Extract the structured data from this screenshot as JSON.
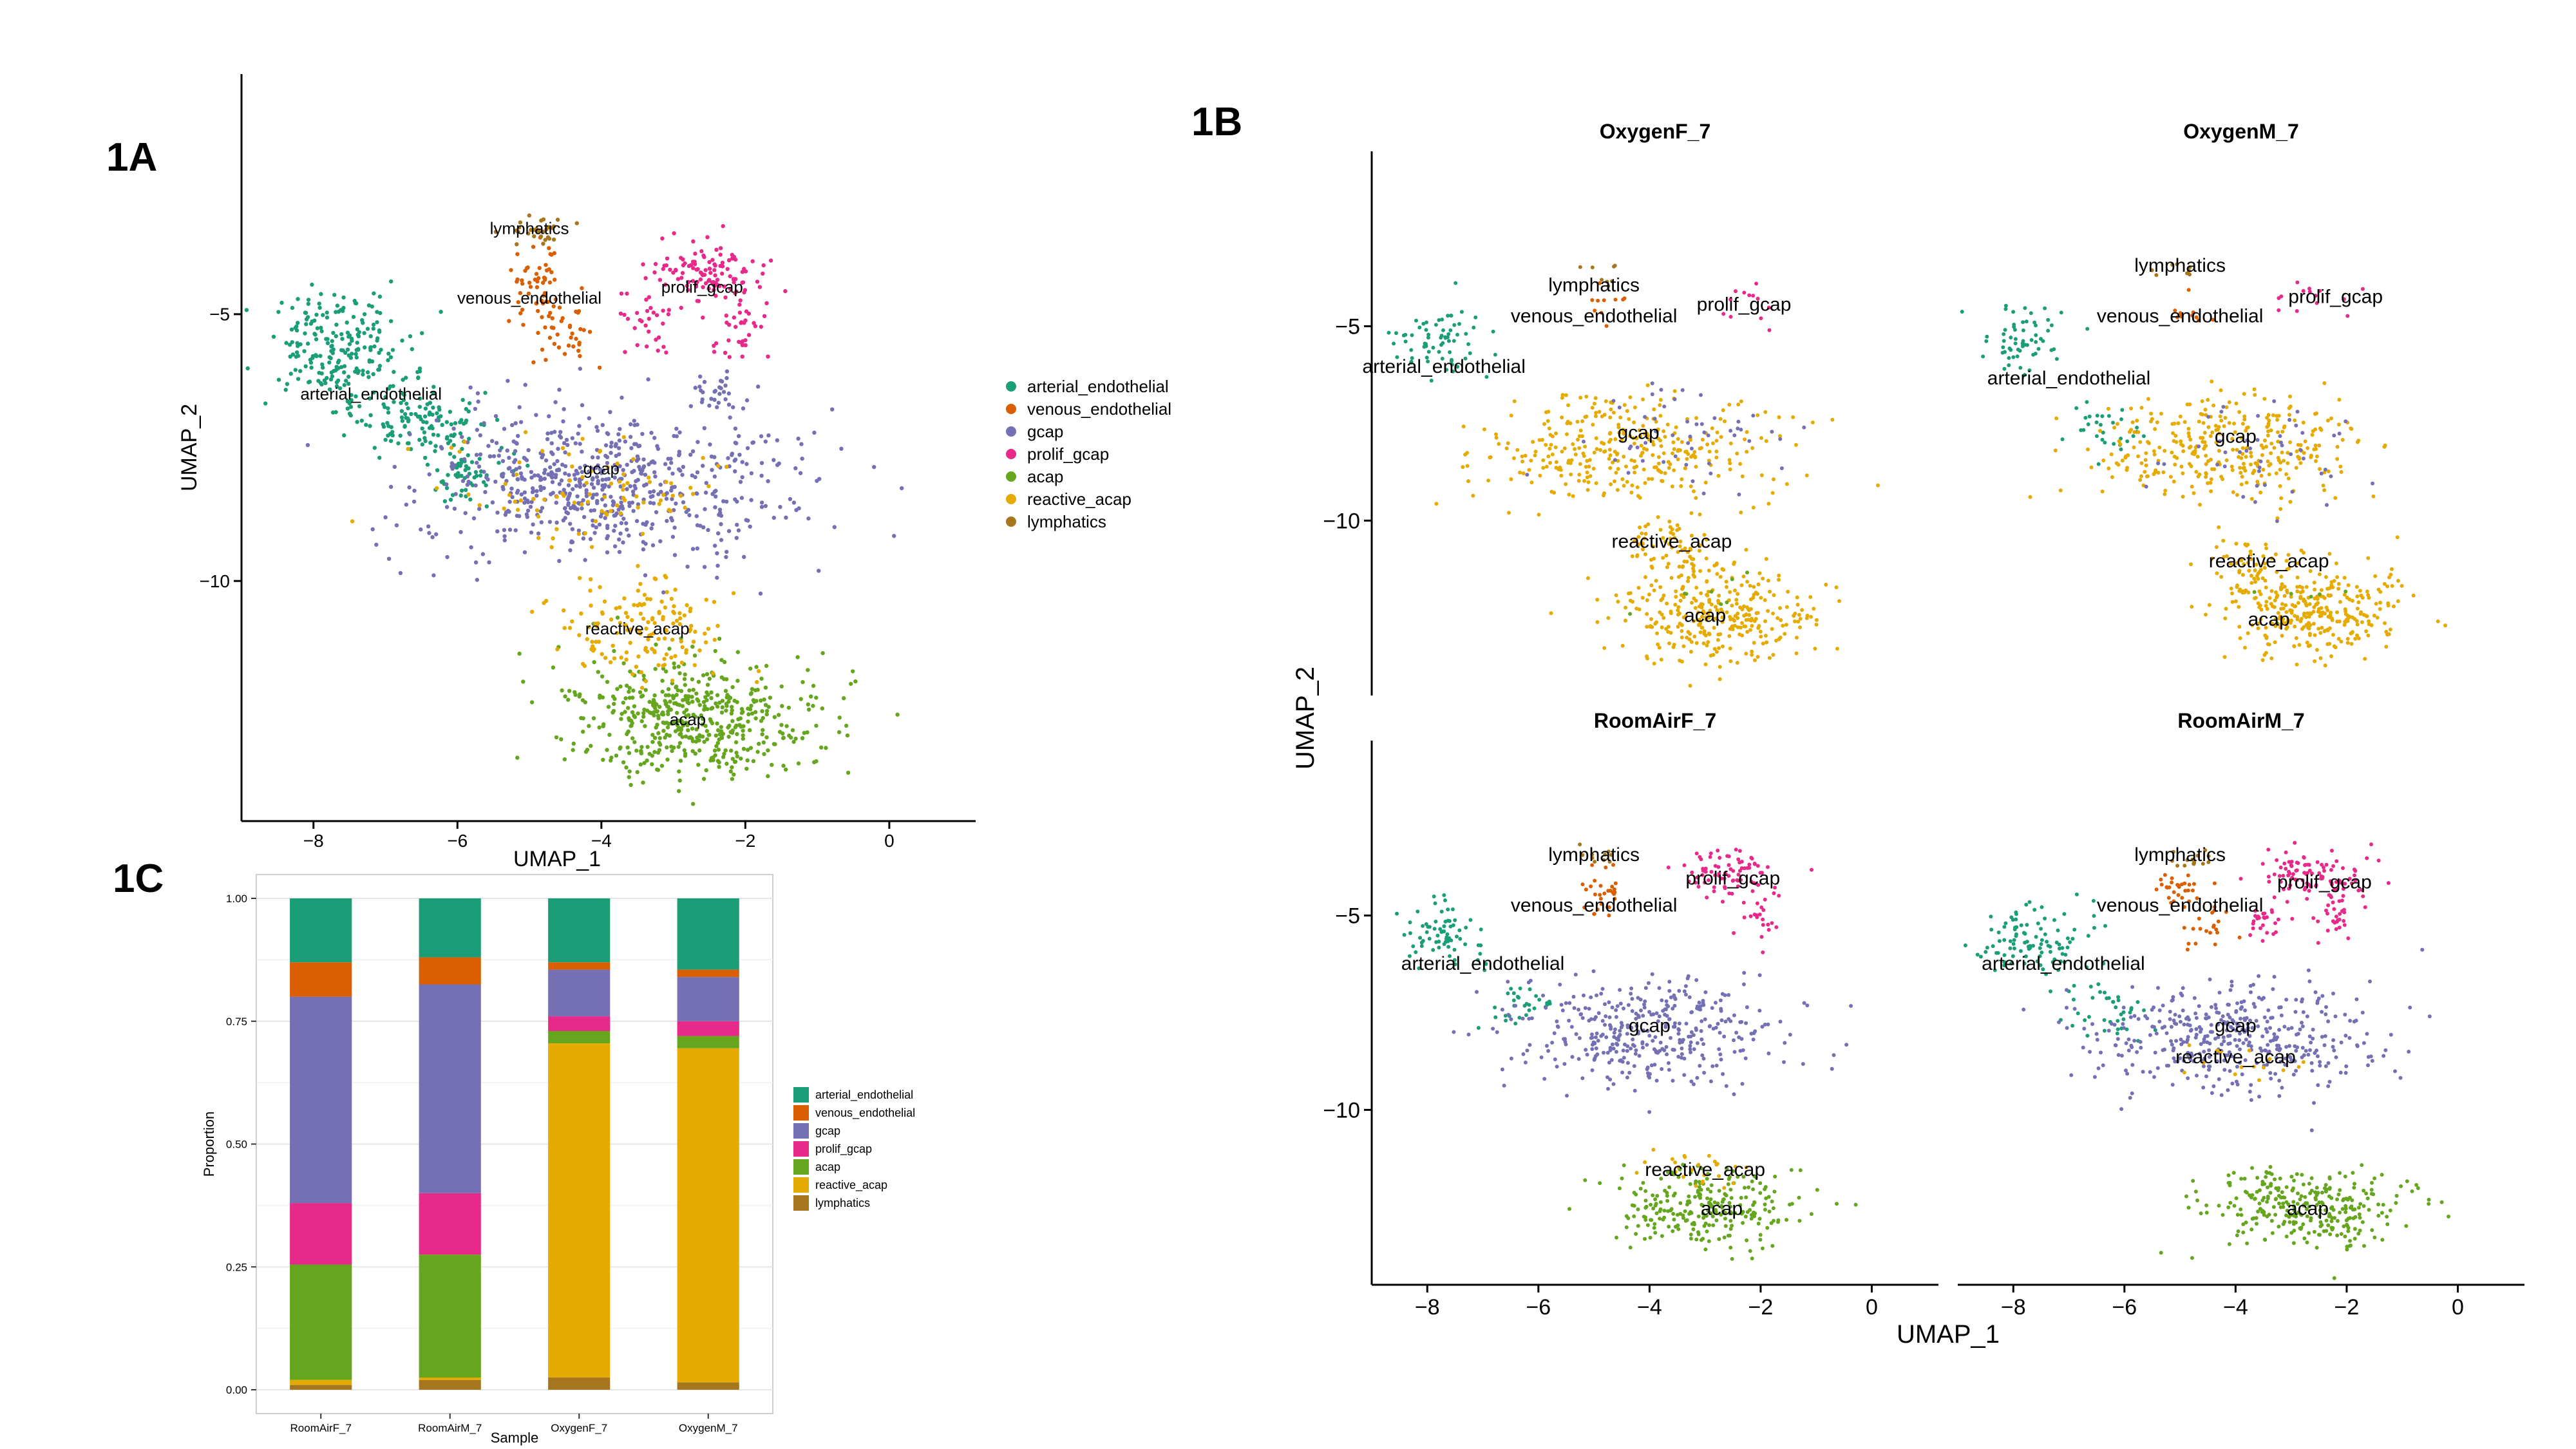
{
  "figure": {
    "panel_labels": [
      "1A",
      "1B",
      "1C"
    ]
  },
  "colors": {
    "arterial_endothelial": "#1b9e77",
    "venous_endothelial": "#d95f02",
    "gcap": "#7570b3",
    "prolif_gcap": "#e7298a",
    "acap": "#66a61e",
    "reactive_acap": "#e6ab02",
    "lymphatics": "#a6761d"
  },
  "chart_data": [
    {
      "id": "1A",
      "type": "scatter",
      "xlabel": "UMAP_1",
      "ylabel": "UMAP_2",
      "xlim": [
        -9.0,
        1.2
      ],
      "ylim": [
        -14.5,
        -0.5
      ],
      "x_ticks": [
        -8,
        -6,
        -4,
        -2,
        0
      ],
      "y_ticks": [
        -5,
        -10
      ],
      "grid": false,
      "legend_position": "right",
      "legend": [
        "arterial_endothelial",
        "venous_endothelial",
        "gcap",
        "prolif_gcap",
        "acap",
        "reactive_acap",
        "lymphatics"
      ],
      "clusters": [
        {
          "name": "arterial_endothelial",
          "label": "arterial_endothelial",
          "label_x": -7.2,
          "label_y": -6.6,
          "regions": [
            {
              "x": -7.7,
              "y": -5.6,
              "sx": 0.5,
              "sy": 0.5,
              "n": 220
            },
            {
              "x": -6.6,
              "y": -7.0,
              "sx": 0.45,
              "sy": 0.35,
              "n": 130
            },
            {
              "x": -5.9,
              "y": -8.0,
              "sx": 0.3,
              "sy": 0.3,
              "n": 60
            }
          ]
        },
        {
          "name": "venous_endothelial",
          "label": "venous_endothelial",
          "label_x": -5.0,
          "label_y": -4.8,
          "regions": [
            {
              "x": -4.9,
              "y": -4.4,
              "sx": 0.18,
              "sy": 0.35,
              "n": 50
            },
            {
              "x": -4.5,
              "y": -5.3,
              "sx": 0.2,
              "sy": 0.35,
              "n": 40
            }
          ]
        },
        {
          "name": "gcap",
          "label": "gcap",
          "label_x": -4.0,
          "label_y": -8.0,
          "regions": [
            {
              "x": -4.0,
              "y": -8.2,
              "sx": 1.3,
              "sy": 0.7,
              "n": 650
            },
            {
              "x": -2.4,
              "y": -6.5,
              "sx": 0.15,
              "sy": 0.3,
              "n": 30
            }
          ]
        },
        {
          "name": "prolif_gcap",
          "label": "prolif_gcap",
          "label_x": -2.6,
          "label_y": -4.6,
          "regions": [
            {
              "x": -2.5,
              "y": -4.2,
              "sx": 0.4,
              "sy": 0.3,
              "n": 110
            },
            {
              "x": -2.1,
              "y": -5.2,
              "sx": 0.2,
              "sy": 0.4,
              "n": 40
            },
            {
              "x": -3.4,
              "y": -5.2,
              "sx": 0.2,
              "sy": 0.35,
              "n": 30
            }
          ]
        },
        {
          "name": "acap",
          "label": "acap",
          "label_x": -2.8,
          "label_y": -12.7,
          "regions": [
            {
              "x": -2.7,
              "y": -12.6,
              "sx": 0.9,
              "sy": 0.55,
              "n": 520
            }
          ]
        },
        {
          "name": "reactive_acap",
          "label": "reactive_acap",
          "label_x": -3.5,
          "label_y": -11.0,
          "regions": [
            {
              "x": -3.4,
              "y": -10.9,
              "sx": 0.6,
              "sy": 0.5,
              "n": 150
            },
            {
              "x": -4.0,
              "y": -8.4,
              "sx": 1.0,
              "sy": 0.5,
              "n": 90
            }
          ]
        },
        {
          "name": "lymphatics",
          "label": "lymphatics",
          "label_x": -5.0,
          "label_y": -3.5,
          "regions": [
            {
              "x": -4.8,
              "y": -3.5,
              "sx": 0.22,
              "sy": 0.14,
              "n": 30
            }
          ]
        }
      ]
    },
    {
      "id": "1B",
      "type": "scatter",
      "xlabel": "UMAP_1",
      "ylabel": "UMAP_2",
      "xlim": [
        -9.0,
        1.2
      ],
      "ylim": [
        -14.5,
        -0.5
      ],
      "x_ticks": [
        -8,
        -6,
        -4,
        -2,
        0
      ],
      "y_ticks": [
        -5,
        -10
      ],
      "grid": false,
      "facets": [
        {
          "title": "OxygenF_7",
          "clusters": [
            {
              "name": "arterial_endothelial",
              "label": "arterial_endothelial",
              "label_x": -7.7,
              "label_y": -6.2,
              "regions": [
                {
                  "x": -7.8,
                  "y": -5.4,
                  "sx": 0.45,
                  "sy": 0.45,
                  "n": 70
                }
              ]
            },
            {
              "name": "venous_endothelial",
              "label": "venous_endothelial",
              "label_x": -5.0,
              "label_y": -4.9,
              "regions": [
                {
                  "x": -4.8,
                  "y": -4.6,
                  "sx": 0.2,
                  "sy": 0.3,
                  "n": 10
                }
              ]
            },
            {
              "name": "reactive_acap",
              "label": "gcap",
              "label_x": -4.2,
              "label_y": -7.9,
              "regions": [
                {
                  "x": -4.3,
                  "y": -8.2,
                  "sx": 1.3,
                  "sy": 0.7,
                  "n": 340
                },
                {
                  "x": -2.7,
                  "y": -12.4,
                  "sx": 0.9,
                  "sy": 0.6,
                  "n": 310
                },
                {
                  "x": -3.6,
                  "y": -10.8,
                  "sx": 0.5,
                  "sy": 0.35,
                  "n": 70
                }
              ]
            },
            {
              "name": "acap",
              "label": "reactive_acap",
              "label_x": -3.6,
              "label_y": -10.7,
              "regions": [
                {
                  "x": -3.0,
                  "y": -12.0,
                  "sx": 0.8,
                  "sy": 0.5,
                  "n": 8
                }
              ]
            },
            {
              "name": "prolif_gcap",
              "label": "prolif_gcap",
              "label_x": -2.3,
              "label_y": -4.6,
              "regions": [
                {
                  "x": -2.4,
                  "y": -4.5,
                  "sx": 0.35,
                  "sy": 0.3,
                  "n": 12
                }
              ]
            },
            {
              "name": "gcap",
              "label": "acap",
              "label_x": -3.0,
              "label_y": -12.6,
              "regions": [
                {
                  "x": -3.5,
                  "y": -8.0,
                  "sx": 1.0,
                  "sy": 0.6,
                  "n": 50
                }
              ]
            },
            {
              "name": "lymphatics",
              "label": "lymphatics",
              "label_x": -5.0,
              "label_y": -4.1,
              "regions": [
                {
                  "x": -4.7,
                  "y": -3.8,
                  "sx": 0.2,
                  "sy": 0.2,
                  "n": 8
                }
              ]
            }
          ]
        },
        {
          "title": "OxygenM_7",
          "clusters": [
            {
              "name": "arterial_endothelial",
              "label": "arterial_endothelial",
              "label_x": -7.0,
              "label_y": -6.5,
              "regions": [
                {
                  "x": -7.8,
                  "y": -5.3,
                  "sx": 0.4,
                  "sy": 0.45,
                  "n": 60
                },
                {
                  "x": -6.4,
                  "y": -7.6,
                  "sx": 0.35,
                  "sy": 0.35,
                  "n": 30
                }
              ]
            },
            {
              "name": "venous_endothelial",
              "label": "venous_endothelial",
              "label_x": -5.0,
              "label_y": -4.9,
              "regions": [
                {
                  "x": -4.9,
                  "y": -4.6,
                  "sx": 0.2,
                  "sy": 0.3,
                  "n": 10
                }
              ]
            },
            {
              "name": "reactive_acap",
              "label": "gcap",
              "label_x": -4.0,
              "label_y": -8.0,
              "regions": [
                {
                  "x": -4.1,
                  "y": -8.2,
                  "sx": 1.2,
                  "sy": 0.7,
                  "n": 330
                },
                {
                  "x": -2.5,
                  "y": -12.3,
                  "sx": 0.85,
                  "sy": 0.6,
                  "n": 300
                },
                {
                  "x": -3.7,
                  "y": -11.2,
                  "sx": 0.4,
                  "sy": 0.35,
                  "n": 60
                }
              ]
            },
            {
              "name": "acap",
              "label": "reactive_acap",
              "label_x": -3.4,
              "label_y": -11.2,
              "regions": [
                {
                  "x": -3.0,
                  "y": -12.0,
                  "sx": 0.6,
                  "sy": 0.4,
                  "n": 6
                }
              ]
            },
            {
              "name": "prolif_gcap",
              "label": "prolif_gcap",
              "label_x": -2.2,
              "label_y": -4.4,
              "regions": [
                {
                  "x": -2.6,
                  "y": -4.3,
                  "sx": 0.4,
                  "sy": 0.3,
                  "n": 14
                }
              ]
            },
            {
              "name": "gcap",
              "label": "acap",
              "label_x": -3.4,
              "label_y": -12.7,
              "regions": [
                {
                  "x": -3.5,
                  "y": -8.4,
                  "sx": 1.0,
                  "sy": 0.6,
                  "n": 45
                }
              ]
            },
            {
              "name": "lymphatics",
              "label": "lymphatics",
              "label_x": -5.0,
              "label_y": -3.6,
              "regions": [
                {
                  "x": -5.0,
                  "y": -3.6,
                  "sx": 0.2,
                  "sy": 0.15,
                  "n": 8
                }
              ]
            }
          ]
        },
        {
          "title": "RoomAirF_7",
          "clusters": [
            {
              "name": "arterial_endothelial",
              "label": "arterial_endothelial",
              "label_x": -7.0,
              "label_y": -6.4,
              "regions": [
                {
                  "x": -7.8,
                  "y": -5.5,
                  "sx": 0.4,
                  "sy": 0.45,
                  "n": 70
                },
                {
                  "x": -6.3,
                  "y": -7.3,
                  "sx": 0.35,
                  "sy": 0.3,
                  "n": 30
                }
              ]
            },
            {
              "name": "venous_endothelial",
              "label": "venous_endothelial",
              "label_x": -5.0,
              "label_y": -4.9,
              "regions": [
                {
                  "x": -4.9,
                  "y": -4.5,
                  "sx": 0.2,
                  "sy": 0.35,
                  "n": 30
                }
              ]
            },
            {
              "name": "gcap",
              "label": "gcap",
              "label_x": -4.0,
              "label_y": -8.0,
              "regions": [
                {
                  "x": -4.0,
                  "y": -8.0,
                  "sx": 1.2,
                  "sy": 0.7,
                  "n": 380
                }
              ]
            },
            {
              "name": "prolif_gcap",
              "label": "prolif_gcap",
              "label_x": -2.5,
              "label_y": -4.2,
              "regions": [
                {
                  "x": -2.6,
                  "y": -3.9,
                  "sx": 0.4,
                  "sy": 0.3,
                  "n": 80
                },
                {
                  "x": -2.1,
                  "y": -5.0,
                  "sx": 0.2,
                  "sy": 0.3,
                  "n": 20
                }
              ]
            },
            {
              "name": "acap",
              "label": "reactive_acap",
              "label_x": -3.0,
              "label_y": -11.7,
              "regions": [
                {
                  "x": -3.0,
                  "y": -12.5,
                  "sx": 0.8,
                  "sy": 0.5,
                  "n": 260
                }
              ]
            },
            {
              "name": "reactive_acap",
              "label": "acap",
              "label_x": -2.7,
              "label_y": -12.7,
              "regions": [
                {
                  "x": -3.2,
                  "y": -11.6,
                  "sx": 0.5,
                  "sy": 0.3,
                  "n": 25
                }
              ]
            },
            {
              "name": "lymphatics",
              "label": "lymphatics",
              "label_x": -5.0,
              "label_y": -3.6,
              "regions": [
                {
                  "x": -4.8,
                  "y": -3.5,
                  "sx": 0.2,
                  "sy": 0.12,
                  "n": 10
                }
              ]
            }
          ]
        },
        {
          "title": "RoomAirM_7",
          "clusters": [
            {
              "name": "arterial_endothelial",
              "label": "arterial_endothelial",
              "label_x": -7.1,
              "label_y": -6.4,
              "regions": [
                {
                  "x": -7.6,
                  "y": -5.6,
                  "sx": 0.45,
                  "sy": 0.5,
                  "n": 100
                },
                {
                  "x": -6.3,
                  "y": -7.4,
                  "sx": 0.35,
                  "sy": 0.35,
                  "n": 40
                }
              ]
            },
            {
              "name": "venous_endothelial",
              "label": "venous_endothelial",
              "label_x": -5.0,
              "label_y": -4.9,
              "regions": [
                {
                  "x": -5.0,
                  "y": -4.3,
                  "sx": 0.2,
                  "sy": 0.3,
                  "n": 30
                },
                {
                  "x": -4.5,
                  "y": -5.2,
                  "sx": 0.2,
                  "sy": 0.3,
                  "n": 20
                }
              ]
            },
            {
              "name": "gcap",
              "label": "gcap",
              "label_x": -4.0,
              "label_y": -8.0,
              "regions": [
                {
                  "x": -4.0,
                  "y": -8.2,
                  "sx": 1.3,
                  "sy": 0.7,
                  "n": 420
                }
              ]
            },
            {
              "name": "prolif_gcap",
              "label": "prolif_gcap",
              "label_x": -2.4,
              "label_y": -4.3,
              "regions": [
                {
                  "x": -2.6,
                  "y": -4.0,
                  "sx": 0.45,
                  "sy": 0.3,
                  "n": 100
                },
                {
                  "x": -2.2,
                  "y": -5.0,
                  "sx": 0.2,
                  "sy": 0.35,
                  "n": 30
                },
                {
                  "x": -3.4,
                  "y": -5.2,
                  "sx": 0.2,
                  "sy": 0.3,
                  "n": 25
                }
              ]
            },
            {
              "name": "acap",
              "label": "reactive_acap",
              "label_x": -4.0,
              "label_y": -8.8,
              "regions": [
                {
                  "x": -2.7,
                  "y": -12.5,
                  "sx": 0.9,
                  "sy": 0.5,
                  "n": 300
                }
              ]
            },
            {
              "name": "reactive_acap",
              "label": "acap",
              "label_x": -2.7,
              "label_y": -12.7,
              "regions": [
                {
                  "x": -3.8,
                  "y": -8.8,
                  "sx": 0.6,
                  "sy": 0.3,
                  "n": 15
                }
              ]
            },
            {
              "name": "lymphatics",
              "label": "lymphatics",
              "label_x": -5.0,
              "label_y": -3.6,
              "regions": [
                {
                  "x": -4.8,
                  "y": -3.6,
                  "sx": 0.2,
                  "sy": 0.14,
                  "n": 14
                }
              ]
            }
          ]
        }
      ]
    },
    {
      "id": "1C",
      "type": "bar",
      "stacked": true,
      "categories": [
        "RoomAirF_7",
        "RoomAirM_7",
        "OxygenF_7",
        "OxygenM_7"
      ],
      "xlabel": "Sample",
      "ylabel": "Proportion",
      "ylim": [
        0,
        1
      ],
      "y_ticks": [
        0.0,
        0.25,
        0.5,
        0.75,
        1.0
      ],
      "y_tick_labels": [
        "0.00",
        "0.25",
        "0.50",
        "0.75",
        "1.00"
      ],
      "grid": true,
      "legend_position": "right",
      "series": [
        {
          "name": "lymphatics",
          "values": [
            0.01,
            0.02,
            0.025,
            0.015
          ]
        },
        {
          "name": "reactive_acap",
          "values": [
            0.01,
            0.005,
            0.68,
            0.68
          ]
        },
        {
          "name": "acap",
          "values": [
            0.235,
            0.25,
            0.025,
            0.025
          ]
        },
        {
          "name": "prolif_gcap",
          "values": [
            0.125,
            0.125,
            0.03,
            0.03
          ]
        },
        {
          "name": "gcap",
          "values": [
            0.42,
            0.425,
            0.095,
            0.09
          ]
        },
        {
          "name": "venous_endothelial",
          "values": [
            0.07,
            0.055,
            0.015,
            0.015
          ]
        },
        {
          "name": "arterial_endothelial",
          "values": [
            0.13,
            0.12,
            0.13,
            0.145
          ]
        }
      ],
      "legend": [
        "arterial_endothelial",
        "venous_endothelial",
        "gcap",
        "prolif_gcap",
        "acap",
        "reactive_acap",
        "lymphatics"
      ]
    }
  ]
}
